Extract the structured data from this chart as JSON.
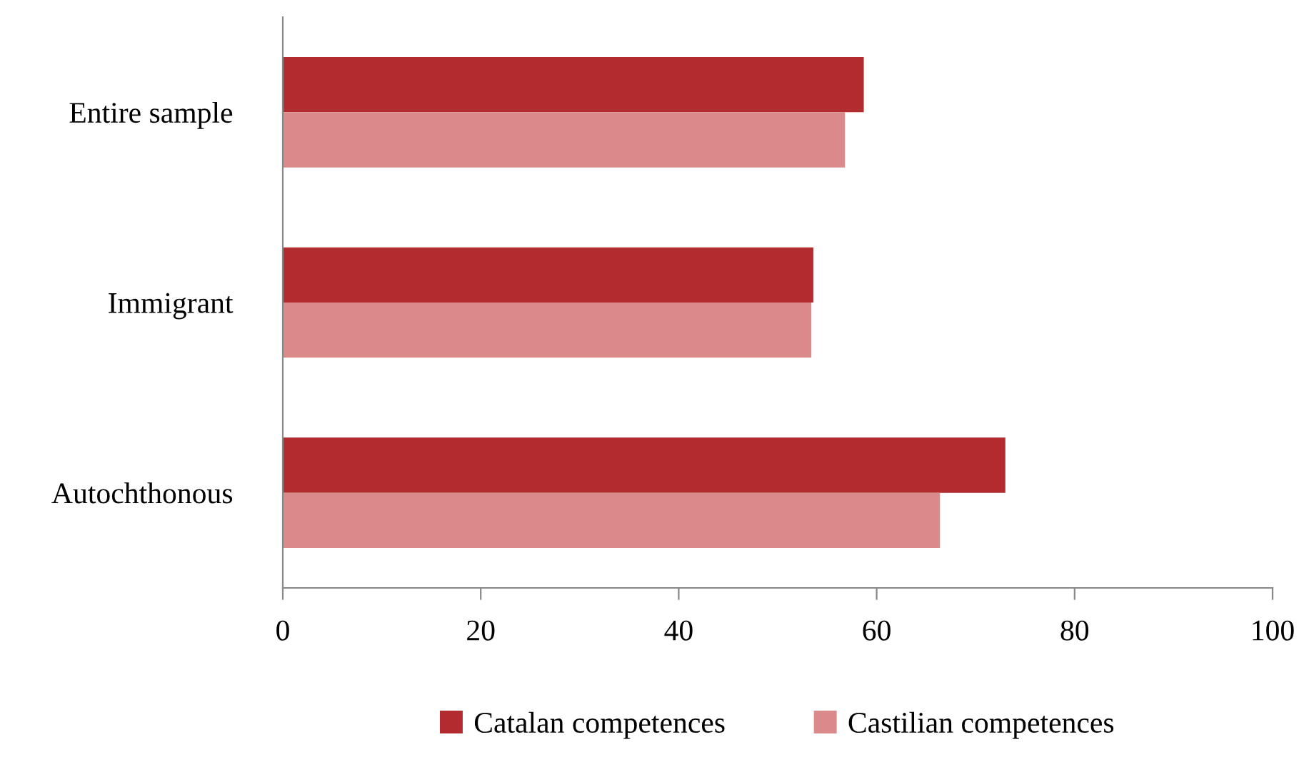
{
  "chart_data": {
    "type": "bar",
    "orientation": "horizontal",
    "categories": [
      "Entire sample",
      "Immigrant",
      "Autochthonous"
    ],
    "series": [
      {
        "name": "Catalan competences",
        "color": "#b22b2e",
        "values": [
          58.7,
          53.6,
          73.0
        ]
      },
      {
        "name": "Castilian competences",
        "color": "#db8a8b",
        "values": [
          56.8,
          53.4,
          66.4
        ]
      }
    ],
    "xlim": [
      0,
      100
    ],
    "xticks": [
      0,
      20,
      40,
      60,
      80,
      100
    ],
    "grid": false,
    "legend": "bottom"
  }
}
